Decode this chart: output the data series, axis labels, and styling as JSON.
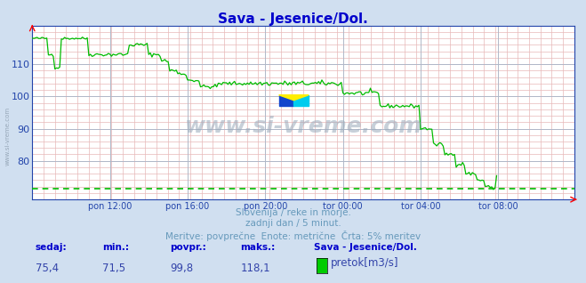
{
  "title": "Sava - Jesenice/Dol.",
  "title_color": "#0000cc",
  "bg_color": "#d0dff0",
  "plot_bg_color": "#ffffff",
  "grid_color_minor": "#e8b8b8",
  "grid_color_major": "#b0b8c8",
  "axis_color": "#2244aa",
  "line_color": "#00bb00",
  "dashed_line_color": "#00bb00",
  "x_labels": [
    "pon 12:00",
    "pon 16:00",
    "pon 20:00",
    "tor 00:00",
    "tor 04:00",
    "tor 08:00"
  ],
  "x_tick_pos": [
    48,
    96,
    144,
    192,
    240,
    288
  ],
  "ylim_lo": 68,
  "ylim_hi": 122,
  "yticks": [
    80,
    90,
    100,
    110
  ],
  "watermark": "www.si-vreme.com",
  "sub_text1": "Slovenija / reke in morje.",
  "sub_text2": "zadnji dan / 5 minut.",
  "sub_text3": "Meritve: povprečne  Enote: metrične  Črta: 5% meritev",
  "sub_text_color": "#6699bb",
  "stats_label_color": "#0000cc",
  "stats_value_color": "#3344aa",
  "stat_sedaj": "75,4",
  "stat_min": "71,5",
  "stat_povpr": "99,8",
  "stat_maks": "118,1",
  "legend_label": "pretok[m3/s]",
  "legend_color": "#00cc00",
  "dashed_y": 71.5,
  "sidebar_text": "www.si-vreme.com",
  "sidebar_color": "#8899aa"
}
